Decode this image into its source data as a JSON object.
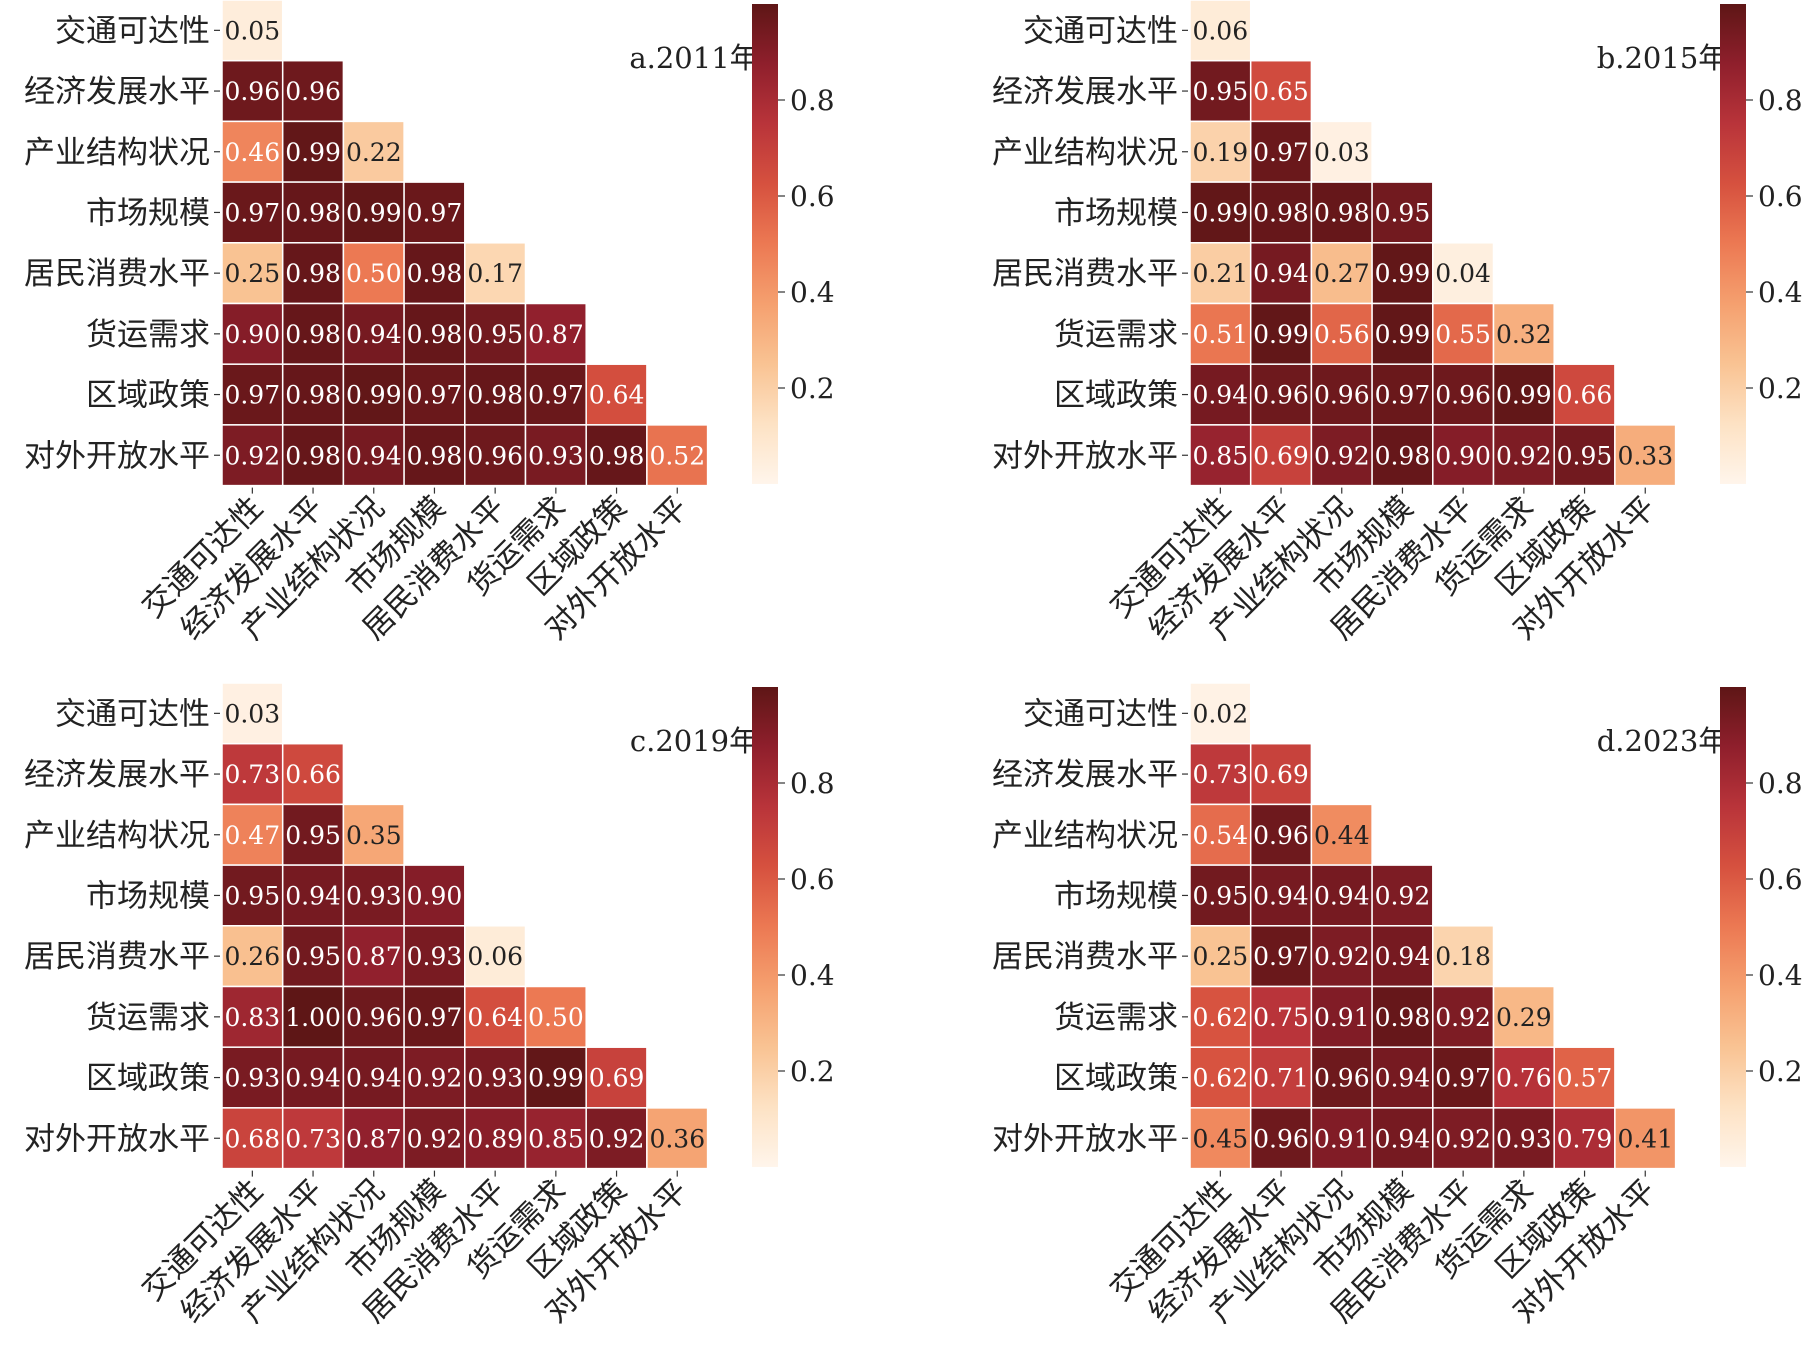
{
  "chart_data": [
    {
      "type": "heatmap",
      "title": "a.2011年",
      "row_labels": [
        "交通可达性",
        "经济发展水平",
        "产业结构状况",
        "市场规模",
        "居民消费水平",
        "货运需求",
        "区域政策",
        "对外开放水平"
      ],
      "col_labels": [
        "交通可达性",
        "经济发展水平",
        "产业结构状况",
        "市场规模",
        "居民消费水平",
        "货运需求",
        "区域政策",
        "对外开放水平"
      ],
      "values": [
        [
          "0.05"
        ],
        [
          "0.96",
          "0.96"
        ],
        [
          "0.46",
          "0.99",
          "0.22"
        ],
        [
          "0.97",
          "0.98",
          "0.99",
          "0.97"
        ],
        [
          "0.25",
          "0.98",
          "0.50",
          "0.98",
          "0.17"
        ],
        [
          "0.90",
          "0.98",
          "0.94",
          "0.98",
          "0.95",
          "0.87"
        ],
        [
          "0.97",
          "0.98",
          "0.99",
          "0.97",
          "0.98",
          "0.97",
          "0.64"
        ],
        [
          "0.92",
          "0.98",
          "0.94",
          "0.98",
          "0.96",
          "0.93",
          "0.98",
          "0.52"
        ]
      ],
      "colorbar_ticks": [
        "0.2",
        "0.4",
        "0.6",
        "0.8"
      ],
      "colorbar_range": [
        0,
        1
      ],
      "mask": "lower-triangle",
      "colormap": "OrRd-like"
    },
    {
      "type": "heatmap",
      "title": "b.2015年",
      "row_labels": [
        "交通可达性",
        "经济发展水平",
        "产业结构状况",
        "市场规模",
        "居民消费水平",
        "货运需求",
        "区域政策",
        "对外开放水平"
      ],
      "col_labels": [
        "交通可达性",
        "经济发展水平",
        "产业结构状况",
        "市场规模",
        "居民消费水平",
        "货运需求",
        "区域政策",
        "对外开放水平"
      ],
      "values": [
        [
          "0.06"
        ],
        [
          "0.95",
          "0.65"
        ],
        [
          "0.19",
          "0.97",
          "0.03"
        ],
        [
          "0.99",
          "0.98",
          "0.98",
          "0.95"
        ],
        [
          "0.21",
          "0.94",
          "0.27",
          "0.99",
          "0.04"
        ],
        [
          "0.51",
          "0.99",
          "0.56",
          "0.99",
          "0.55",
          "0.32"
        ],
        [
          "0.94",
          "0.96",
          "0.96",
          "0.97",
          "0.96",
          "0.99",
          "0.66"
        ],
        [
          "0.85",
          "0.69",
          "0.92",
          "0.98",
          "0.90",
          "0.92",
          "0.95",
          "0.33"
        ]
      ],
      "colorbar_ticks": [
        "0.2",
        "0.4",
        "0.6",
        "0.8"
      ],
      "colorbar_range": [
        0,
        1
      ],
      "mask": "lower-triangle",
      "colormap": "OrRd-like"
    },
    {
      "type": "heatmap",
      "title": "c.2019年",
      "row_labels": [
        "交通可达性",
        "经济发展水平",
        "产业结构状况",
        "市场规模",
        "居民消费水平",
        "货运需求",
        "区域政策",
        "对外开放水平"
      ],
      "col_labels": [
        "交通可达性",
        "经济发展水平",
        "产业结构状况",
        "市场规模",
        "居民消费水平",
        "货运需求",
        "区域政策",
        "对外开放水平"
      ],
      "values": [
        [
          "0.03"
        ],
        [
          "0.73",
          "0.66"
        ],
        [
          "0.47",
          "0.95",
          "0.35"
        ],
        [
          "0.95",
          "0.94",
          "0.93",
          "0.90"
        ],
        [
          "0.26",
          "0.95",
          "0.87",
          "0.93",
          "0.06"
        ],
        [
          "0.83",
          "1.00",
          "0.96",
          "0.97",
          "0.64",
          "0.50"
        ],
        [
          "0.93",
          "0.94",
          "0.94",
          "0.92",
          "0.93",
          "0.99",
          "0.69"
        ],
        [
          "0.68",
          "0.73",
          "0.87",
          "0.92",
          "0.89",
          "0.85",
          "0.92",
          "0.36"
        ]
      ],
      "colorbar_ticks": [
        "0.2",
        "0.4",
        "0.6",
        "0.8"
      ],
      "colorbar_range": [
        0,
        1
      ],
      "mask": "lower-triangle",
      "colormap": "OrRd-like"
    },
    {
      "type": "heatmap",
      "title": "d.2023年",
      "row_labels": [
        "交通可达性",
        "经济发展水平",
        "产业结构状况",
        "市场规模",
        "居民消费水平",
        "货运需求",
        "区域政策",
        "对外开放水平"
      ],
      "col_labels": [
        "交通可达性",
        "经济发展水平",
        "产业结构状况",
        "市场规模",
        "居民消费水平",
        "货运需求",
        "区域政策",
        "对外开放水平"
      ],
      "values": [
        [
          "0.02"
        ],
        [
          "0.73",
          "0.69"
        ],
        [
          "0.54",
          "0.96",
          "0.44"
        ],
        [
          "0.95",
          "0.94",
          "0.94",
          "0.92"
        ],
        [
          "0.25",
          "0.97",
          "0.92",
          "0.94",
          "0.18"
        ],
        [
          "0.62",
          "0.75",
          "0.91",
          "0.98",
          "0.92",
          "0.29"
        ],
        [
          "0.62",
          "0.71",
          "0.96",
          "0.94",
          "0.97",
          "0.76",
          "0.57"
        ],
        [
          "0.45",
          "0.96",
          "0.91",
          "0.94",
          "0.92",
          "0.93",
          "0.79",
          "0.41"
        ]
      ],
      "colorbar_ticks": [
        "0.2",
        "0.4",
        "0.6",
        "0.8"
      ],
      "colorbar_range": [
        0,
        1
      ],
      "mask": "lower-triangle",
      "colormap": "OrRd-like"
    }
  ]
}
